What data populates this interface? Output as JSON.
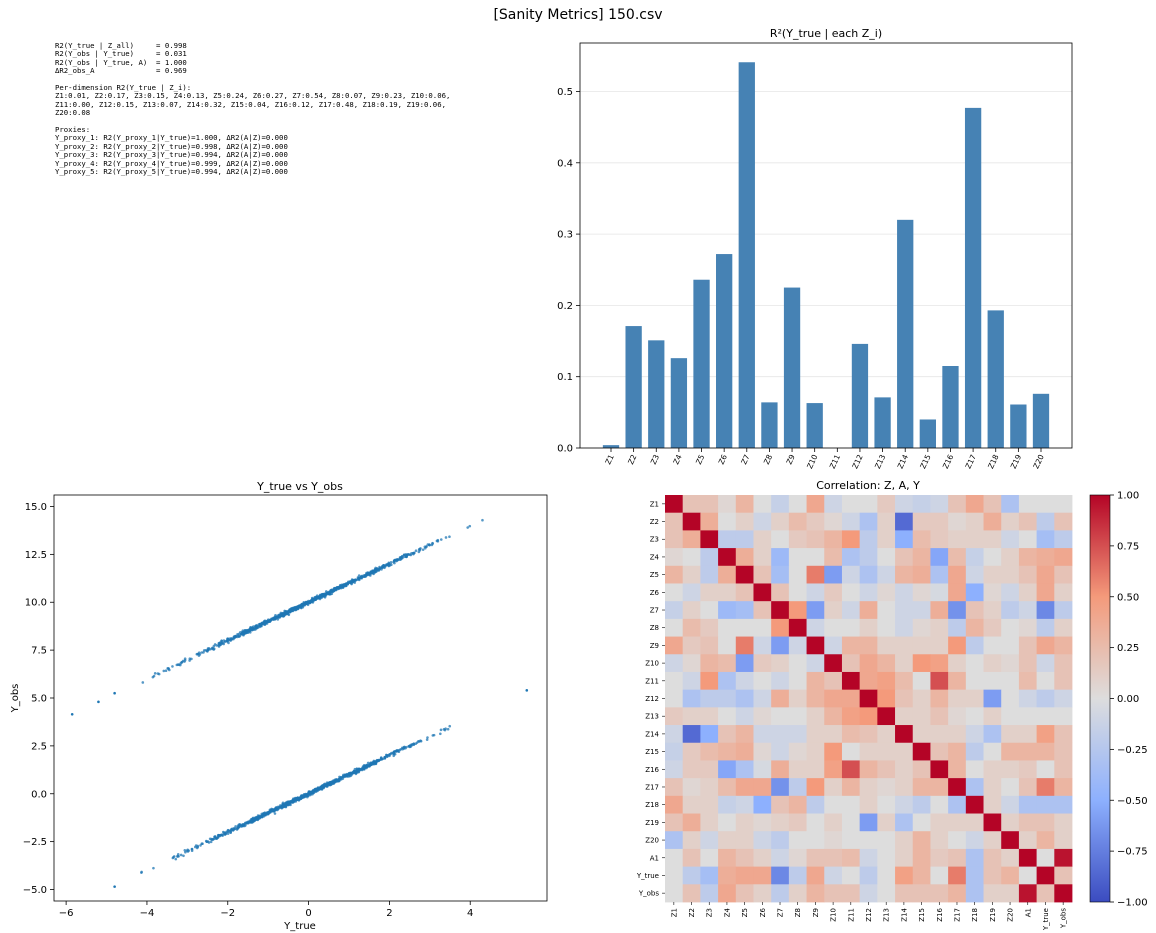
{
  "figure": {
    "title": "[Sanity Metrics] 150.csv",
    "stats_lines": [
      "R2(Y_true | Z_all)     = 0.998",
      "R2(Y_obs | Y_true)     = 0.031",
      "R2(Y_obs | Y_true, A)  = 1.000",
      "ΔR2_obs_A              = 0.969",
      "",
      "Per-dimension R2(Y_true | Z_i):",
      "Z1:0.01, Z2:0.17, Z3:0.15, Z4:0.13, Z5:0.24, Z6:0.27, Z7:0.54, Z8:0.07, Z9:0.23, Z10:0.06,",
      "Z11:0.00, Z12:0.15, Z13:0.07, Z14:0.32, Z15:0.04, Z16:0.12, Z17:0.48, Z18:0.19, Z19:0.06,",
      "Z20:0.08",
      "",
      "Proxies:",
      "Y_proxy_1: R2(Y_proxy_1|Y_true)=1.000, ΔR2(A|Z)=0.000",
      "Y_proxy_2: R2(Y_proxy_2|Y_true)=0.998, ΔR2(A|Z)=0.000",
      "Y_proxy_3: R2(Y_proxy_3|Y_true)=0.994, ΔR2(A|Z)=0.000",
      "Y_proxy_4: R2(Y_proxy_4|Y_true)=0.999, ΔR2(A|Z)=0.000",
      "Y_proxy_5: R2(Y_proxy_5|Y_true)=0.994, ΔR2(A|Z)=0.000"
    ]
  },
  "chart_data": [
    {
      "type": "bar",
      "title": "R²(Y_true | each Z_i)",
      "xlabel": "",
      "ylabel": "",
      "categories": [
        "Z1",
        "Z2",
        "Z3",
        "Z4",
        "Z5",
        "Z6",
        "Z7",
        "Z8",
        "Z9",
        "Z10",
        "Z11",
        "Z12",
        "Z13",
        "Z14",
        "Z15",
        "Z16",
        "Z17",
        "Z18",
        "Z19",
        "Z20"
      ],
      "values": [
        0.004,
        0.171,
        0.151,
        0.126,
        0.236,
        0.272,
        0.541,
        0.064,
        0.225,
        0.063,
        0.0,
        0.146,
        0.071,
        0.32,
        0.04,
        0.115,
        0.477,
        0.193,
        0.061,
        0.076
      ],
      "ylim": [
        0,
        0.568
      ],
      "yticks": [
        "0.0",
        "0.1",
        "0.2",
        "0.3",
        "0.4",
        "0.5"
      ],
      "grid": "horizontal",
      "color": "#4682b4"
    },
    {
      "type": "scatter",
      "title": "Y_true vs Y_obs",
      "xlabel": "Y_true",
      "ylabel": "Y_obs",
      "xlim": [
        -6.3,
        5.9
      ],
      "ylim": [
        -5.6,
        15.6
      ],
      "xticks": [
        "−6",
        "−4",
        "−2",
        "0",
        "2",
        "4"
      ],
      "yticks": [
        "−5.0",
        "−2.5",
        "0.0",
        "2.5",
        "5.0",
        "7.5",
        "10.0",
        "12.5",
        "15.0"
      ],
      "series": [
        {
          "relation": "y = x",
          "x_range": [
            -4.8,
            4.55
          ]
        },
        {
          "relation": "y = x + 10",
          "x_range": [
            -4.2,
            4.6
          ]
        }
      ],
      "outliers": [
        {
          "x": -5.85,
          "y": 4.15
        },
        {
          "x": -5.2,
          "y": 4.8
        },
        {
          "x": -4.8,
          "y": 5.25
        },
        {
          "x": 5.4,
          "y": 5.4
        },
        {
          "x": -4.8,
          "y": -4.85
        }
      ],
      "color": "#1f77b4"
    },
    {
      "type": "heatmap",
      "title": "Correlation: Z, A, Y",
      "labels": [
        "Z1",
        "Z2",
        "Z3",
        "Z4",
        "Z5",
        "Z6",
        "Z7",
        "Z8",
        "Z9",
        "Z10",
        "Z11",
        "Z12",
        "Z13",
        "Z14",
        "Z15",
        "Z16",
        "Z17",
        "Z18",
        "Z19",
        "Z20",
        "A1",
        "Y_true",
        "Y_obs"
      ],
      "colormap": "coolwarm",
      "vmin": -1,
      "vmax": 1,
      "colorbar_ticks": [
        "1.00",
        "0.75",
        "0.50",
        "0.25",
        "0.00",
        "−0.25",
        "−0.50",
        "−0.75",
        "−1.00"
      ],
      "matrix": [
        [
          1,
          0.2,
          0.2,
          0.05,
          0.3,
          0,
          -0.15,
          0,
          0.4,
          -0.1,
          0,
          0,
          0.15,
          -0.1,
          -0.15,
          -0.1,
          0.2,
          0.4,
          0.2,
          -0.3,
          0,
          0,
          0
        ],
        [
          0.2,
          1,
          0.35,
          0,
          0.1,
          -0.1,
          0.1,
          0.25,
          0.15,
          0.05,
          -0.1,
          -0.3,
          0.1,
          -0.85,
          0.15,
          0.15,
          0.05,
          0.1,
          0.35,
          0.1,
          0.2,
          -0.2,
          0.2
        ],
        [
          0.2,
          0.35,
          1,
          -0.2,
          -0.2,
          0.1,
          0,
          0.15,
          0.2,
          0.3,
          0.5,
          -0.2,
          0.1,
          -0.5,
          0.25,
          0.15,
          0.1,
          0.1,
          0.1,
          -0.1,
          0,
          -0.35,
          -0.2
        ],
        [
          0.05,
          0,
          -0.2,
          1,
          0.35,
          0.1,
          -0.4,
          0,
          0,
          0.25,
          -0.3,
          -0.2,
          0,
          0.2,
          0.3,
          -0.55,
          0.25,
          -0.15,
          0,
          0.1,
          0.3,
          0.35,
          0.4
        ],
        [
          0.3,
          0.1,
          -0.2,
          0.35,
          1,
          0.2,
          -0.35,
          0,
          0.6,
          -0.6,
          -0.1,
          -0.3,
          -0.1,
          0.3,
          0.35,
          -0.3,
          0.4,
          -0.1,
          0.1,
          0.1,
          0.2,
          0.4,
          0.2
        ],
        [
          0,
          -0.1,
          0.1,
          0.1,
          0.2,
          1,
          0.2,
          0,
          -0.1,
          0.15,
          0,
          -0.1,
          0.05,
          -0.1,
          0.05,
          -0.05,
          0.4,
          -0.5,
          0.05,
          -0.1,
          0.1,
          0.4,
          0.1
        ],
        [
          -0.15,
          0.1,
          0,
          -0.4,
          -0.35,
          0.2,
          1,
          0.5,
          -0.6,
          0.1,
          -0.1,
          0.35,
          0,
          -0.1,
          -0.1,
          0.35,
          -0.65,
          0.2,
          0.1,
          -0.2,
          -0.1,
          -0.7,
          -0.2
        ],
        [
          0,
          0.25,
          0.15,
          0,
          0,
          0,
          0.5,
          1,
          -0.1,
          0,
          0,
          0.1,
          0,
          -0.1,
          0.05,
          0.1,
          -0.2,
          0.3,
          0.15,
          0,
          0.05,
          -0.2,
          0.1
        ],
        [
          0.4,
          0.15,
          0.2,
          0,
          0.6,
          -0.1,
          -0.6,
          -0.1,
          1,
          -0.1,
          0.3,
          0.3,
          0.1,
          0.1,
          0.1,
          0.1,
          0.5,
          -0.2,
          0,
          0,
          0.2,
          0.4,
          0.3
        ],
        [
          -0.1,
          0.05,
          0.3,
          0.25,
          -0.6,
          0.15,
          0.1,
          0,
          -0.1,
          1,
          0.2,
          0.4,
          0.3,
          0.1,
          0.5,
          0.45,
          0.1,
          0,
          0.1,
          0.05,
          0.2,
          -0.1,
          0.2
        ],
        [
          0,
          -0.1,
          0.5,
          -0.3,
          -0.1,
          0,
          -0.1,
          0,
          0.3,
          0.2,
          1,
          0.4,
          0.45,
          0.25,
          0,
          0.75,
          0.3,
          0,
          0,
          0,
          0.25,
          0,
          0.2
        ],
        [
          0,
          -0.3,
          -0.2,
          -0.2,
          -0.3,
          -0.1,
          0.35,
          0.1,
          0.3,
          0.4,
          0.4,
          1,
          0.5,
          0.2,
          0.1,
          0.3,
          0.1,
          0.1,
          -0.6,
          0,
          -0.1,
          -0.2,
          -0.1
        ],
        [
          0.15,
          0.1,
          0.1,
          0,
          -0.1,
          0.05,
          0,
          0,
          0.1,
          0.3,
          0.45,
          0.5,
          1,
          0.1,
          0.1,
          0.2,
          0.05,
          0,
          0.1,
          0,
          0,
          0,
          0
        ],
        [
          -0.1,
          -0.85,
          -0.5,
          0.2,
          0.3,
          -0.1,
          -0.1,
          -0.1,
          0.1,
          0.1,
          0.25,
          0.2,
          0.1,
          1,
          0.1,
          0.1,
          0.1,
          -0.1,
          -0.3,
          0.1,
          0.1,
          0.45,
          0.2
        ],
        [
          -0.15,
          0.15,
          0.25,
          0.3,
          0.35,
          0.05,
          -0.1,
          0.05,
          0.1,
          0.5,
          0,
          0.1,
          0.1,
          0.1,
          1,
          0.2,
          0.3,
          -0.2,
          0,
          0.3,
          0.3,
          0.3,
          0.2
        ],
        [
          -0.1,
          0.15,
          0.15,
          -0.55,
          -0.3,
          -0.05,
          0.35,
          0.1,
          0.1,
          0.45,
          0.75,
          0.3,
          0.2,
          0.1,
          0.2,
          1,
          0.3,
          0,
          0.1,
          0.1,
          0.15,
          0,
          0.2
        ],
        [
          0.2,
          0.05,
          0.1,
          0.25,
          0.4,
          0.4,
          -0.65,
          -0.2,
          0.5,
          0.1,
          0.3,
          0.1,
          0.05,
          0.1,
          0.3,
          0.3,
          1,
          -0.3,
          0.1,
          0,
          0.2,
          0.6,
          0.3
        ],
        [
          0.4,
          0.1,
          0.1,
          -0.15,
          -0.1,
          -0.5,
          0.2,
          0.3,
          -0.2,
          0,
          0,
          0.1,
          0,
          -0.1,
          -0.2,
          0,
          -0.3,
          1,
          0.1,
          -0.1,
          -0.3,
          -0.3,
          -0.3
        ],
        [
          0.2,
          0.35,
          0.1,
          0,
          0.1,
          0.05,
          0.1,
          0.15,
          0,
          0.1,
          0,
          -0.6,
          0.1,
          -0.3,
          0,
          0.1,
          0.1,
          0.1,
          1,
          0.1,
          0.2,
          0.2,
          0.1
        ],
        [
          -0.3,
          0.1,
          -0.1,
          0.1,
          0.1,
          -0.1,
          -0.2,
          0,
          0,
          0.05,
          0,
          0,
          0,
          0.1,
          0.3,
          0.1,
          0,
          -0.1,
          0.1,
          1,
          0.1,
          0.3,
          0.1
        ],
        [
          0,
          0.2,
          0,
          0.3,
          0.2,
          0.1,
          -0.1,
          0.05,
          0.2,
          0.2,
          0.25,
          -0.1,
          0,
          0.1,
          0.3,
          0.15,
          0.2,
          -0.3,
          0.2,
          0.1,
          1,
          0,
          0.95
        ],
        [
          0,
          -0.2,
          -0.35,
          0.35,
          0.4,
          0.4,
          -0.7,
          -0.2,
          0.4,
          -0.1,
          0,
          -0.2,
          0,
          0.45,
          0.3,
          0,
          0.6,
          -0.3,
          0.2,
          0.3,
          0,
          1,
          0.2
        ],
        [
          0,
          0.2,
          -0.2,
          0.4,
          0.2,
          0.1,
          -0.2,
          0.1,
          0.3,
          0.2,
          0.2,
          -0.1,
          0,
          0.2,
          0.2,
          0.2,
          0.3,
          -0.3,
          0.1,
          0.1,
          0.95,
          0.2,
          1
        ]
      ]
    }
  ]
}
